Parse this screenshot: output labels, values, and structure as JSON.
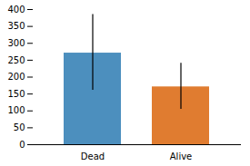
{
  "chart_data": {
    "type": "bar",
    "categories": [
      "Dead",
      "Alive"
    ],
    "values": [
      271,
      171
    ],
    "yerr_low": [
      110,
      66
    ],
    "yerr_high": [
      114,
      70
    ],
    "colors": [
      "#4c8fbe",
      "#e07c30"
    ],
    "ylim": [
      0,
      400
    ],
    "yticks": [
      0,
      50,
      100,
      150,
      200,
      250,
      300,
      350,
      400
    ],
    "grid": false
  }
}
